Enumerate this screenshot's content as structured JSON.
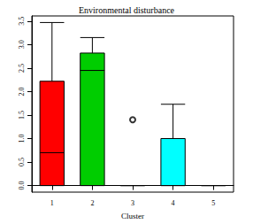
{
  "chart_data": {
    "type": "boxplot",
    "title": "Environmental disturbance",
    "x_label": "Cluster",
    "categories": [
      "1",
      "2",
      "3",
      "4",
      "5"
    ],
    "boxes": [
      [
        0,
        0,
        0.7,
        2.22,
        3.47
      ],
      [
        0,
        0,
        2.45,
        2.82,
        3.15
      ],
      [
        0,
        0,
        0,
        0,
        0
      ],
      [
        0,
        0,
        0,
        1.0,
        1.73
      ],
      [
        0,
        0,
        0,
        0,
        0
      ]
    ],
    "outliers": [
      [],
      [],
      [
        1.4
      ],
      [],
      []
    ],
    "colors": [
      "#ff0000",
      "#00cd00",
      "#0000ff",
      "#00ffff",
      "#ff00ff"
    ],
    "ylim": [
      -0.14,
      3.61
    ],
    "yticks": [
      {
        "value": 0,
        "label": "0.0"
      },
      0.5,
      {
        "value": 1,
        "label": "1.0"
      },
      1.5,
      {
        "value": 2,
        "label": "2.0"
      },
      2.5,
      {
        "value": 3,
        "label": "3.0"
      },
      3.5
    ],
    "grid": false
  }
}
